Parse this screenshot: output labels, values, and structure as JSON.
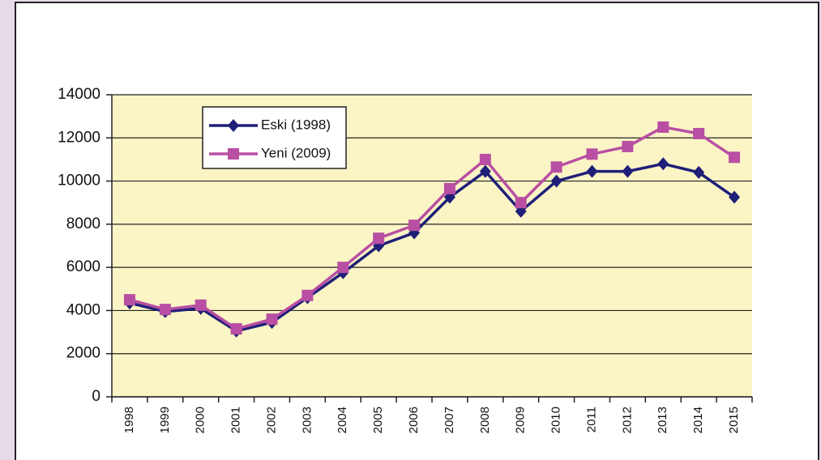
{
  "chart_data": {
    "type": "line",
    "categories": [
      "1998",
      "1999",
      "2000",
      "2001",
      "2002",
      "2003",
      "2004",
      "2005",
      "2006",
      "2007",
      "2008",
      "2009",
      "2010",
      "2011",
      "2012",
      "2013",
      "2014",
      "2015"
    ],
    "series": [
      {
        "name": "Eski (1998)",
        "color": "#1f1f78",
        "marker": "diamond",
        "values": [
          4350,
          3950,
          4100,
          3050,
          3450,
          4600,
          5750,
          7000,
          7600,
          9250,
          10450,
          8600,
          10000,
          10450,
          10450,
          10800,
          10400,
          9250
        ]
      },
      {
        "name": "Yeni (2009)",
        "color": "#b84fa3",
        "marker": "square",
        "values": [
          4500,
          4050,
          4250,
          3150,
          3600,
          4700,
          6000,
          7350,
          7950,
          9650,
          11000,
          9000,
          10650,
          11250,
          11600,
          12500,
          12200,
          11100
        ]
      }
    ],
    "ylim": [
      0,
      14000
    ],
    "yticks": [
      0,
      2000,
      4000,
      6000,
      8000,
      10000,
      12000,
      14000
    ],
    "grid": true
  }
}
